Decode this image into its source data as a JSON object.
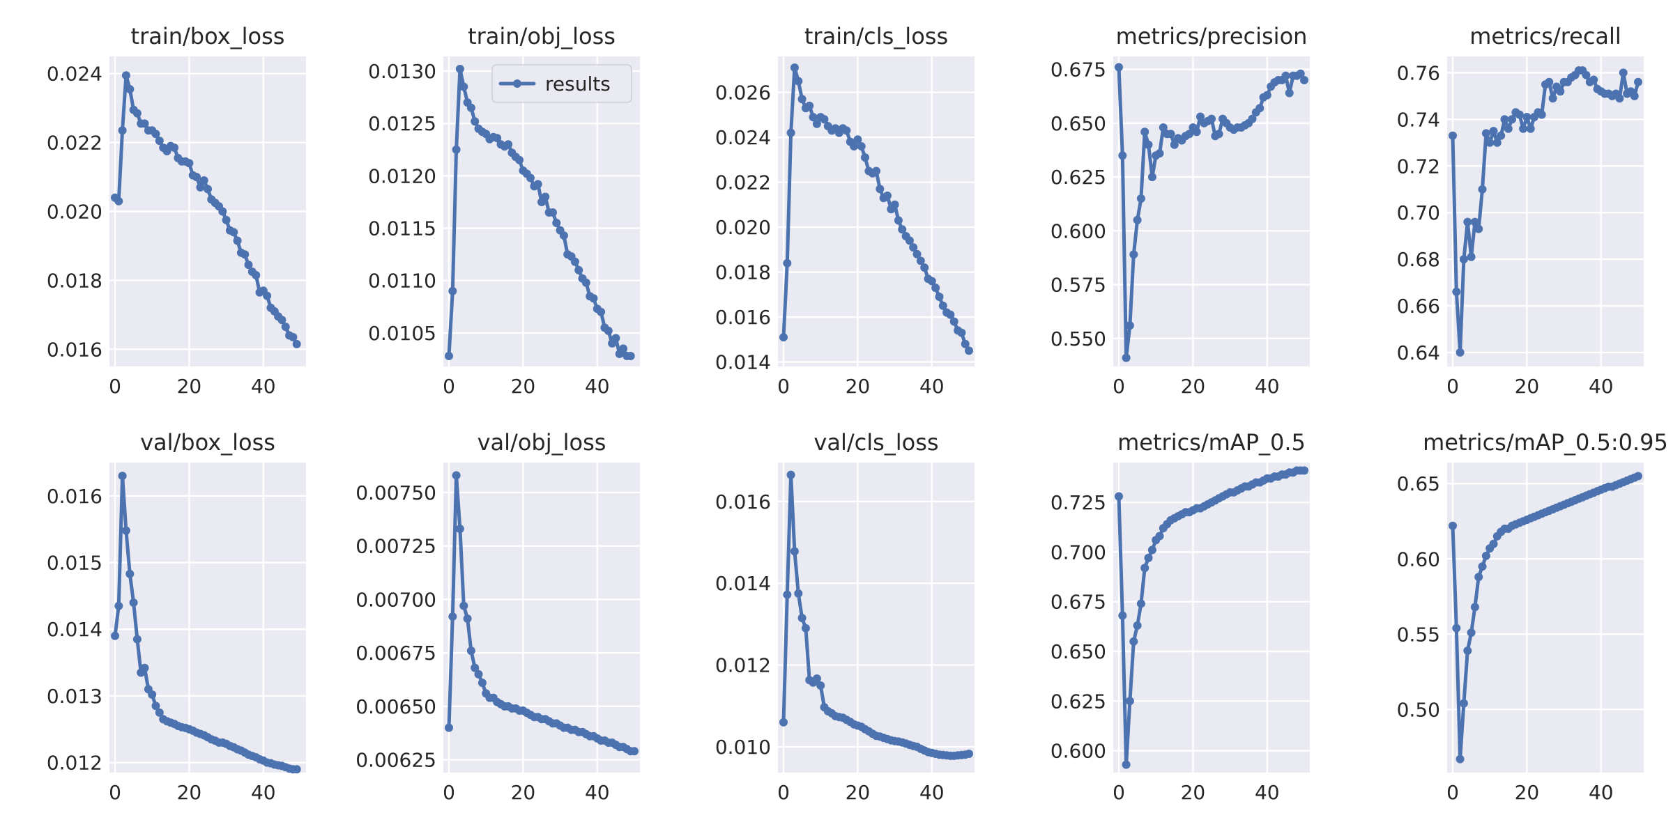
{
  "chart_data": [
    {
      "type": "line",
      "title": "train/box_loss",
      "xlim": [
        -1.5,
        51.5
      ],
      "ylim": [
        0.0155,
        0.0245
      ],
      "xticks": [
        0,
        20,
        40
      ],
      "yticks": [
        0.016,
        0.018,
        0.02,
        0.022,
        0.024
      ],
      "ytick_labels": [
        "0.016",
        "0.018",
        "0.020",
        "0.022",
        "0.024"
      ],
      "series": [
        {
          "values": [
            0.0204,
            0.0203,
            0.02235,
            0.02395,
            0.02355,
            0.02295,
            0.02285,
            0.02255,
            0.02255,
            0.02235,
            0.02235,
            0.02225,
            0.02205,
            0.02185,
            0.02175,
            0.0219,
            0.02185,
            0.02155,
            0.02145,
            0.02145,
            0.0214,
            0.02105,
            0.021,
            0.0207,
            0.0209,
            0.02065,
            0.02035,
            0.02025,
            0.02015,
            0.02,
            0.01975,
            0.01945,
            0.0194,
            0.01915,
            0.0188,
            0.01875,
            0.01845,
            0.01825,
            0.01815,
            0.01765,
            0.0177,
            0.01755,
            0.0172,
            0.0171,
            0.01695,
            0.01685,
            0.01665,
            0.0164,
            0.01635,
            0.01615
          ]
        }
      ]
    },
    {
      "type": "line",
      "title": "train/obj_loss",
      "xlim": [
        -1.5,
        51.5
      ],
      "ylim": [
        0.01018,
        0.01314
      ],
      "xticks": [
        0,
        20,
        40
      ],
      "yticks": [
        0.0105,
        0.011,
        0.0115,
        0.012,
        0.0125,
        0.013
      ],
      "ytick_labels": [
        "0.0105",
        "0.0110",
        "0.0115",
        "0.0120",
        "0.0125",
        "0.0130"
      ],
      "legend": {
        "entries": [
          "results"
        ],
        "position": "upper right"
      },
      "series": [
        {
          "name": "results",
          "values": [
            0.01028,
            0.0109,
            0.01225,
            0.01302,
            0.01285,
            0.0127,
            0.01265,
            0.01252,
            0.01245,
            0.01242,
            0.0124,
            0.01235,
            0.01237,
            0.01236,
            0.0123,
            0.01228,
            0.0123,
            0.01222,
            0.01218,
            0.01215,
            0.01205,
            0.01202,
            0.01198,
            0.0119,
            0.01192,
            0.01175,
            0.0118,
            0.01165,
            0.01165,
            0.01155,
            0.01148,
            0.01143,
            0.01125,
            0.01123,
            0.01118,
            0.0111,
            0.01102,
            0.01098,
            0.01085,
            0.01083,
            0.01073,
            0.0107,
            0.01055,
            0.01052,
            0.0104,
            0.01045,
            0.0103,
            0.01035,
            0.01028,
            0.01028
          ]
        }
      ]
    },
    {
      "type": "line",
      "title": "train/cls_loss",
      "xlim": [
        -1.5,
        51.5
      ],
      "ylim": [
        0.0138,
        0.0276
      ],
      "xticks": [
        0,
        20,
        40
      ],
      "yticks": [
        0.014,
        0.016,
        0.018,
        0.02,
        0.022,
        0.024,
        0.026
      ],
      "ytick_labels": [
        "0.014",
        "0.016",
        "0.018",
        "0.020",
        "0.022",
        "0.024",
        "0.026"
      ],
      "series": [
        {
          "values": [
            0.0151,
            0.0184,
            0.0242,
            0.0271,
            0.0265,
            0.0257,
            0.0253,
            0.0254,
            0.0249,
            0.0246,
            0.0249,
            0.0248,
            0.0245,
            0.0243,
            0.0244,
            0.0242,
            0.0244,
            0.0243,
            0.0238,
            0.0236,
            0.0239,
            0.0236,
            0.0231,
            0.0225,
            0.0224,
            0.0225,
            0.0217,
            0.0213,
            0.0214,
            0.0208,
            0.021,
            0.0203,
            0.0199,
            0.0196,
            0.0194,
            0.0191,
            0.0188,
            0.0185,
            0.0182,
            0.0177,
            0.0176,
            0.0173,
            0.0169,
            0.0165,
            0.0162,
            0.0161,
            0.0158,
            0.0154,
            0.0153,
            0.0148,
            0.0145
          ]
        }
      ]
    },
    {
      "type": "line",
      "title": "metrics/precision",
      "xlim": [
        -1.5,
        51.5
      ],
      "ylim": [
        0.537,
        0.681
      ],
      "xticks": [
        0,
        20,
        40
      ],
      "yticks": [
        0.55,
        0.575,
        0.6,
        0.625,
        0.65,
        0.675
      ],
      "ytick_labels": [
        "0.550",
        "0.575",
        "0.600",
        "0.625",
        "0.650",
        "0.675"
      ],
      "series": [
        {
          "values": [
            0.676,
            0.635,
            0.541,
            0.556,
            0.589,
            0.605,
            0.615,
            0.646,
            0.64,
            0.625,
            0.635,
            0.636,
            0.648,
            0.645,
            0.645,
            0.64,
            0.643,
            0.642,
            0.644,
            0.645,
            0.648,
            0.646,
            0.653,
            0.65,
            0.651,
            0.652,
            0.644,
            0.645,
            0.652,
            0.65,
            0.648,
            0.647,
            0.648,
            0.648,
            0.649,
            0.65,
            0.652,
            0.655,
            0.657,
            0.662,
            0.663,
            0.667,
            0.669,
            0.67,
            0.67,
            0.672,
            0.664,
            0.672,
            0.672,
            0.673,
            0.67
          ]
        }
      ]
    },
    {
      "type": "line",
      "title": "metrics/recall",
      "xlim": [
        -1.5,
        51.5
      ],
      "ylim": [
        0.634,
        0.767
      ],
      "xticks": [
        0,
        20,
        40
      ],
      "yticks": [
        0.64,
        0.66,
        0.68,
        0.7,
        0.72,
        0.74,
        0.76
      ],
      "ytick_labels": [
        "0.64",
        "0.66",
        "0.68",
        "0.70",
        "0.72",
        "0.74",
        "0.76"
      ],
      "series": [
        {
          "values": [
            0.733,
            0.666,
            0.64,
            0.68,
            0.696,
            0.681,
            0.696,
            0.693,
            0.71,
            0.734,
            0.73,
            0.735,
            0.73,
            0.733,
            0.74,
            0.736,
            0.74,
            0.743,
            0.742,
            0.736,
            0.741,
            0.736,
            0.741,
            0.743,
            0.742,
            0.755,
            0.756,
            0.749,
            0.754,
            0.752,
            0.756,
            0.756,
            0.758,
            0.759,
            0.761,
            0.761,
            0.759,
            0.756,
            0.757,
            0.753,
            0.752,
            0.751,
            0.751,
            0.75,
            0.751,
            0.749,
            0.76,
            0.751,
            0.752,
            0.75,
            0.756
          ]
        }
      ]
    },
    {
      "type": "line",
      "title": "val/box_loss",
      "xlim": [
        -1.5,
        51.5
      ],
      "ylim": [
        0.01185,
        0.0165
      ],
      "xticks": [
        0,
        20,
        40
      ],
      "yticks": [
        0.012,
        0.013,
        0.014,
        0.015,
        0.016
      ],
      "ytick_labels": [
        "0.012",
        "0.013",
        "0.014",
        "0.015",
        "0.016"
      ],
      "series": [
        {
          "values": [
            0.0139,
            0.01435,
            0.0163,
            0.01548,
            0.01483,
            0.0144,
            0.01385,
            0.01335,
            0.01342,
            0.0131,
            0.01302,
            0.01285,
            0.01275,
            0.01265,
            0.01262,
            0.0126,
            0.01258,
            0.01255,
            0.01253,
            0.01252,
            0.0125,
            0.01248,
            0.01245,
            0.01243,
            0.01241,
            0.01238,
            0.01235,
            0.01233,
            0.0123,
            0.0123,
            0.01228,
            0.01225,
            0.01223,
            0.0122,
            0.01218,
            0.01215,
            0.01212,
            0.0121,
            0.01208,
            0.01205,
            0.01203,
            0.012,
            0.01199,
            0.01197,
            0.01196,
            0.01195,
            0.01193,
            0.01191,
            0.0119,
            0.0119
          ]
        }
      ]
    },
    {
      "type": "line",
      "title": "val/obj_loss",
      "xlim": [
        -1.5,
        51.5
      ],
      "ylim": [
        0.00619,
        0.00764
      ],
      "xticks": [
        0,
        20,
        40
      ],
      "yticks": [
        0.00625,
        0.0065,
        0.00675,
        0.007,
        0.00725,
        0.0075
      ],
      "ytick_labels": [
        "0.00625",
        "0.00650",
        "0.00675",
        "0.00700",
        "0.00725",
        "0.00750"
      ],
      "series": [
        {
          "values": [
            0.0064,
            0.00692,
            0.00758,
            0.00733,
            0.00697,
            0.00691,
            0.00676,
            0.00668,
            0.00665,
            0.00661,
            0.00656,
            0.00654,
            0.00654,
            0.00652,
            0.00651,
            0.0065,
            0.0065,
            0.00649,
            0.00649,
            0.00648,
            0.00648,
            0.00647,
            0.00646,
            0.00645,
            0.00645,
            0.00644,
            0.00644,
            0.00643,
            0.00642,
            0.00642,
            0.00641,
            0.0064,
            0.0064,
            0.00639,
            0.00639,
            0.00638,
            0.00638,
            0.00637,
            0.00636,
            0.00636,
            0.00635,
            0.00634,
            0.00634,
            0.00633,
            0.00633,
            0.00632,
            0.00631,
            0.00631,
            0.0063,
            0.00629,
            0.00629
          ]
        }
      ]
    },
    {
      "type": "line",
      "title": "val/cls_loss",
      "xlim": [
        -1.5,
        51.5
      ],
      "ylim": [
        0.00937,
        0.01695
      ],
      "xticks": [
        0,
        20,
        40
      ],
      "yticks": [
        0.01,
        0.012,
        0.014,
        0.016
      ],
      "ytick_labels": [
        "0.010",
        "0.012",
        "0.014",
        "0.016"
      ],
      "series": [
        {
          "values": [
            0.0106,
            0.01372,
            0.01665,
            0.01478,
            0.01375,
            0.01315,
            0.0129,
            0.01163,
            0.01157,
            0.01167,
            0.0115,
            0.01097,
            0.01087,
            0.01082,
            0.01075,
            0.01073,
            0.01071,
            0.01066,
            0.01061,
            0.01055,
            0.01052,
            0.01049,
            0.01043,
            0.01038,
            0.01032,
            0.01027,
            0.01025,
            0.01022,
            0.01019,
            0.01016,
            0.01014,
            0.01013,
            0.01011,
            0.01008,
            0.01005,
            0.01002,
            0.01,
            0.00995,
            0.00991,
            0.00987,
            0.00985,
            0.00983,
            0.00981,
            0.0098,
            0.00979,
            0.00978,
            0.00978,
            0.00979,
            0.0098,
            0.00981,
            0.00983
          ]
        }
      ]
    },
    {
      "type": "line",
      "title": "metrics/mAP_0.5",
      "xlim": [
        -1.5,
        51.5
      ],
      "ylim": [
        0.589,
        0.745
      ],
      "xticks": [
        0,
        20,
        40
      ],
      "yticks": [
        0.6,
        0.625,
        0.65,
        0.675,
        0.7,
        0.725
      ],
      "ytick_labels": [
        "0.600",
        "0.625",
        "0.650",
        "0.675",
        "0.700",
        "0.725"
      ],
      "series": [
        {
          "values": [
            0.728,
            0.668,
            0.593,
            0.625,
            0.655,
            0.663,
            0.674,
            0.692,
            0.697,
            0.701,
            0.706,
            0.708,
            0.712,
            0.714,
            0.716,
            0.717,
            0.718,
            0.719,
            0.72,
            0.72,
            0.721,
            0.722,
            0.722,
            0.723,
            0.724,
            0.725,
            0.726,
            0.727,
            0.728,
            0.729,
            0.73,
            0.73,
            0.731,
            0.732,
            0.733,
            0.733,
            0.734,
            0.735,
            0.735,
            0.736,
            0.737,
            0.737,
            0.738,
            0.738,
            0.739,
            0.739,
            0.74,
            0.74,
            0.741,
            0.741,
            0.741
          ]
        }
      ]
    },
    {
      "type": "line",
      "title": "metrics/mAP_0.5:0.95",
      "xlim": [
        -1.5,
        51.5
      ],
      "ylim": [
        0.458,
        0.664
      ],
      "xticks": [
        0,
        20,
        40
      ],
      "yticks": [
        0.5,
        0.55,
        0.6,
        0.65
      ],
      "ytick_labels": [
        "0.50",
        "0.55",
        "0.60",
        "0.65"
      ],
      "series": [
        {
          "values": [
            0.622,
            0.554,
            0.467,
            0.504,
            0.539,
            0.551,
            0.568,
            0.588,
            0.595,
            0.602,
            0.607,
            0.61,
            0.615,
            0.618,
            0.62,
            0.62,
            0.622,
            0.623,
            0.624,
            0.625,
            0.626,
            0.627,
            0.628,
            0.629,
            0.63,
            0.631,
            0.632,
            0.633,
            0.634,
            0.635,
            0.636,
            0.637,
            0.638,
            0.639,
            0.64,
            0.641,
            0.642,
            0.643,
            0.644,
            0.645,
            0.646,
            0.647,
            0.648,
            0.648,
            0.649,
            0.65,
            0.651,
            0.652,
            0.653,
            0.654,
            0.655
          ]
        }
      ]
    }
  ]
}
